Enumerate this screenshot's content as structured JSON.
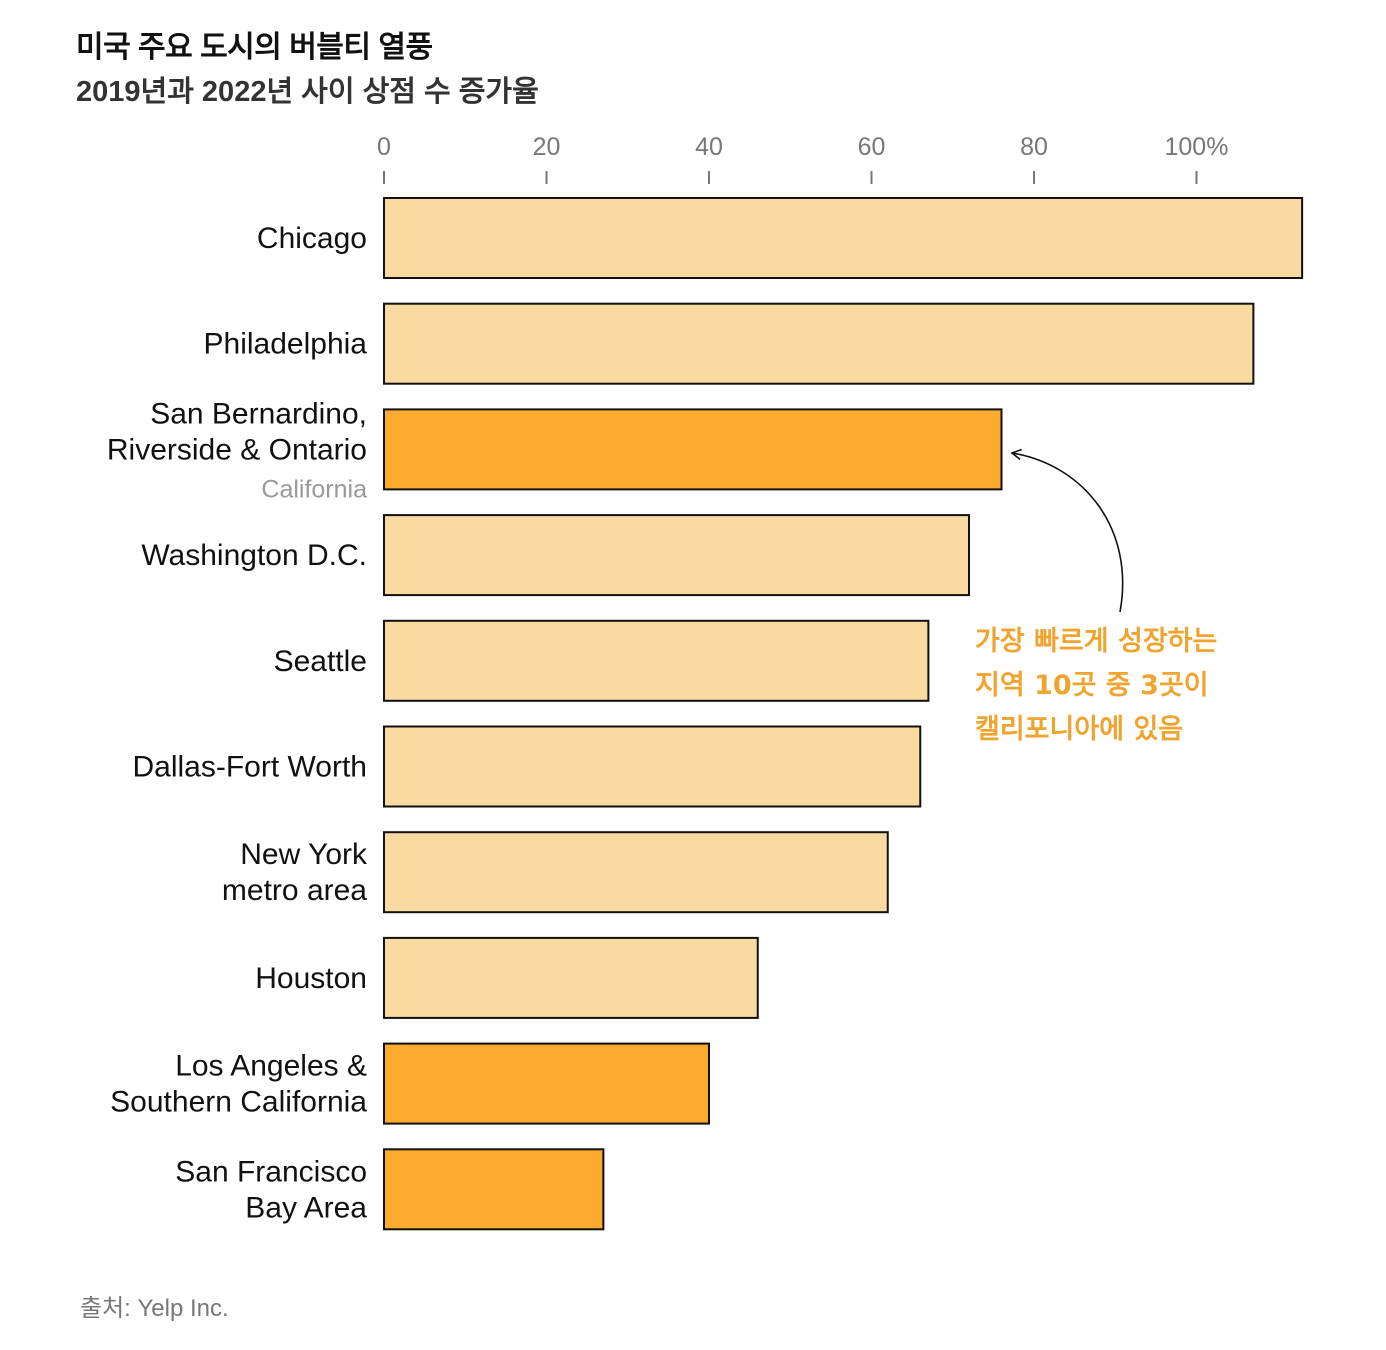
{
  "title": "미국 주요 도시의 버블티 열풍",
  "subtitle": "2019년과 2022년 사이 상점 수 증가율",
  "source": "출처: Yelp Inc.",
  "colors": {
    "base": "#f9dba1",
    "highlight": "#fcab2f",
    "annotation": "#f0a430",
    "stroke": "#111111"
  },
  "chart_data": {
    "type": "bar",
    "orientation": "horizontal",
    "x_ticks": [
      {
        "value": 0,
        "label": "0"
      },
      {
        "value": 20,
        "label": "20"
      },
      {
        "value": 40,
        "label": "40"
      },
      {
        "value": 60,
        "label": "60"
      },
      {
        "value": 80,
        "label": "80"
      },
      {
        "value": 100,
        "label": "100%"
      }
    ],
    "xlim": [
      0,
      113
    ],
    "axis_position": "top",
    "categories": [
      {
        "label_lines": [
          "Chicago"
        ],
        "note": "",
        "value": 113,
        "highlight": false
      },
      {
        "label_lines": [
          "Philadelphia"
        ],
        "note": "",
        "value": 107,
        "highlight": false
      },
      {
        "label_lines": [
          "San Bernardino,",
          "Riverside & Ontario"
        ],
        "note": "California",
        "value": 76,
        "highlight": true
      },
      {
        "label_lines": [
          "Washington D.C."
        ],
        "note": "",
        "value": 72,
        "highlight": false
      },
      {
        "label_lines": [
          "Seattle"
        ],
        "note": "",
        "value": 67,
        "highlight": false
      },
      {
        "label_lines": [
          "Dallas-Fort Worth"
        ],
        "note": "",
        "value": 66,
        "highlight": false
      },
      {
        "label_lines": [
          "New York",
          "metro area"
        ],
        "note": "",
        "value": 62,
        "highlight": false
      },
      {
        "label_lines": [
          "Houston"
        ],
        "note": "",
        "value": 46,
        "highlight": false
      },
      {
        "label_lines": [
          "Los Angeles &",
          "Southern California"
        ],
        "note": "",
        "value": 40,
        "highlight": true
      },
      {
        "label_lines": [
          "San Francisco",
          "Bay Area"
        ],
        "note": "",
        "value": 27,
        "highlight": true
      }
    ],
    "annotation": {
      "lines": [
        "가장 빠르게 성장하는",
        "지역 10곳 중 3곳이",
        "캘리포니아에 있음"
      ],
      "points_to_category": 2
    }
  }
}
